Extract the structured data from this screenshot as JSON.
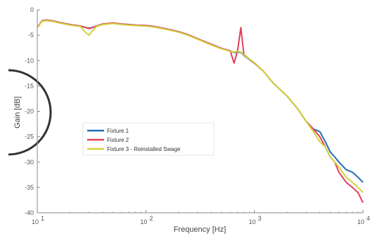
{
  "chart_data": {
    "type": "line",
    "title": "",
    "xlabel": "Frequency [Hz]",
    "ylabel": "Gain [dB]",
    "xscale": "log",
    "xlim": [
      10,
      10000
    ],
    "ylim": [
      -40,
      0
    ],
    "x_ticks": [
      {
        "value": 10,
        "base": "10",
        "exp": "1"
      },
      {
        "value": 100,
        "base": "10",
        "exp": "2"
      },
      {
        "value": 1000,
        "base": "10",
        "exp": "3"
      },
      {
        "value": 10000,
        "base": "10",
        "exp": "4"
      }
    ],
    "y_ticks": [
      0,
      -5,
      -10,
      -15,
      -20,
      -25,
      -30,
      -35,
      -40
    ],
    "grid": false,
    "legend_position": "center-left",
    "x": [
      10,
      11,
      12,
      14,
      16,
      20,
      25,
      28,
      30,
      32,
      35,
      40,
      50,
      60,
      70,
      80,
      100,
      120,
      150,
      200,
      250,
      300,
      400,
      500,
      600,
      650,
      700,
      750,
      800,
      1000,
      1200,
      1500,
      2000,
      2500,
      3000,
      3500,
      4000,
      4500,
      5000,
      5500,
      6000,
      7000,
      8000,
      9000,
      10000
    ],
    "series": [
      {
        "name": "Fixture 1",
        "color": "#1f6fb5",
        "values": [
          -3.5,
          -2.2,
          -2.0,
          -2.2,
          -2.5,
          -2.9,
          -3.2,
          -3.5,
          -3.6,
          -3.5,
          -3.2,
          -2.8,
          -2.6,
          -2.8,
          -2.9,
          -3.0,
          -3.1,
          -3.3,
          -3.7,
          -4.3,
          -5.0,
          -5.7,
          -6.8,
          -7.6,
          -8.1,
          -8.4,
          -8.3,
          -8.4,
          -9.0,
          -10.5,
          -12.0,
          -14.5,
          -17.0,
          -19.5,
          -22.0,
          -23.5,
          -24.0,
          -26.0,
          -28.0,
          -29.0,
          -30.0,
          -31.5,
          -32.0,
          -33.0,
          -34.0
        ]
      },
      {
        "name": "Fixture 2",
        "color": "#e0405a",
        "values": [
          -3.5,
          -2.2,
          -2.0,
          -2.2,
          -2.5,
          -2.9,
          -3.2,
          -3.5,
          -3.7,
          -3.5,
          -3.2,
          -2.8,
          -2.6,
          -2.8,
          -2.9,
          -3.0,
          -3.1,
          -3.3,
          -3.7,
          -4.3,
          -5.0,
          -5.7,
          -6.8,
          -7.6,
          -8.1,
          -10.5,
          -8.0,
          -3.5,
          -8.8,
          -10.5,
          -12.0,
          -14.5,
          -17.0,
          -19.5,
          -22.0,
          -23.5,
          -25.0,
          -27.0,
          -29.0,
          -30.0,
          -32.0,
          -34.0,
          -35.0,
          -36.0,
          -38.0
        ]
      },
      {
        "name": "Fixture 3 - Reinstalled Swage",
        "color": "#d2d23c",
        "values": [
          -3.6,
          -2.3,
          -2.1,
          -2.3,
          -2.6,
          -3.0,
          -3.3,
          -4.5,
          -5.0,
          -4.2,
          -3.3,
          -2.9,
          -2.7,
          -2.9,
          -3.0,
          -3.1,
          -3.2,
          -3.4,
          -3.8,
          -4.4,
          -5.1,
          -5.8,
          -6.9,
          -7.7,
          -8.2,
          -8.3,
          -8.2,
          -8.3,
          -8.9,
          -10.4,
          -12.0,
          -14.5,
          -17.0,
          -19.5,
          -22.0,
          -24.0,
          -26.0,
          -27.0,
          -29.0,
          -30.0,
          -31.0,
          -33.0,
          -34.0,
          -35.0,
          -36.0
        ]
      }
    ]
  }
}
